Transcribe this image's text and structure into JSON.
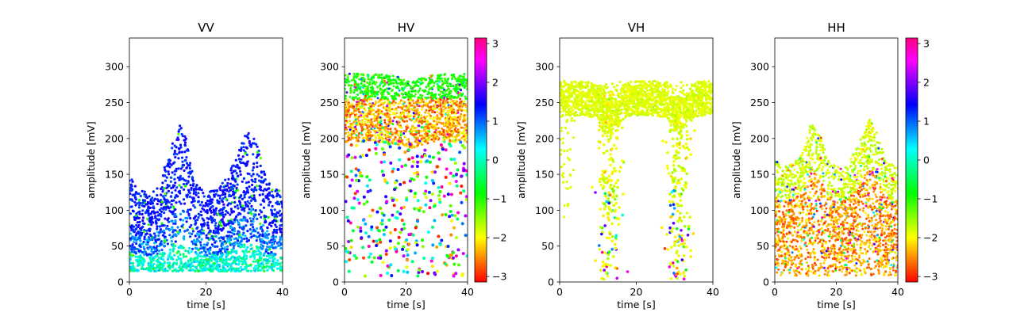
{
  "chart_data": [
    {
      "type": "scatter",
      "title": "VV",
      "xlabel": "time [s]",
      "ylabel": "amplitude [mV]",
      "xlim": [
        0,
        40
      ],
      "ylim": [
        0,
        340
      ],
      "xticks": [
        0,
        20,
        40
      ],
      "yticks": [
        0,
        50,
        100,
        150,
        200,
        250,
        300
      ],
      "colorbar": false,
      "description": "Dense point cloud; base envelope ~15-150 mV with bursts up to ~230 mV near t=13 s and t=31 s. Phase mostly +1 to +1.5 rad (blue), lower amplitudes ~0 to -1 rad (cyan/green).",
      "density": [
        [
          0,
          150
        ],
        [
          2,
          130
        ],
        [
          5,
          125
        ],
        [
          8,
          140
        ],
        [
          11,
          190
        ],
        [
          13,
          220
        ],
        [
          15,
          200
        ],
        [
          17,
          140
        ],
        [
          20,
          125
        ],
        [
          24,
          135
        ],
        [
          28,
          175
        ],
        [
          31,
          215
        ],
        [
          33,
          200
        ],
        [
          36,
          140
        ],
        [
          40,
          125
        ]
      ],
      "phase_scheme": "vv"
    },
    {
      "type": "scatter",
      "title": "HV",
      "xlabel": "time [s]",
      "ylabel": "amplitude [mV]",
      "xlim": [
        0,
        40
      ],
      "ylim": [
        0,
        340
      ],
      "xticks": [
        0,
        20,
        40
      ],
      "yticks": [
        0,
        50,
        100,
        150,
        200,
        250,
        300
      ],
      "colorbar": true,
      "colorbar_ticks": [
        -3,
        -2,
        -1,
        0,
        1,
        2,
        3
      ],
      "description": "Dense band 200-290 mV (green on top, orange/red below), sparse multicolor scatter down to ~10 mV.",
      "phase_scheme": "hv"
    },
    {
      "type": "scatter",
      "title": "VH",
      "xlabel": "time [s]",
      "ylabel": "amplitude [mV]",
      "xlim": [
        0,
        40
      ],
      "ylim": [
        0,
        340
      ],
      "xticks": [
        0,
        20,
        40
      ],
      "yticks": [
        0,
        50,
        100,
        150,
        200,
        250,
        300
      ],
      "colorbar": false,
      "description": "Band 230-280 mV, phase ~-1.8 rad (yellow-green); deep dips to ~0 mV near t=13 s and t=31 s.",
      "phase_scheme": "vh"
    },
    {
      "type": "scatter",
      "title": "HH",
      "xlabel": "time [s]",
      "ylabel": "amplitude [mV]",
      "xlim": [
        0,
        40
      ],
      "ylim": [
        0,
        340
      ],
      "xticks": [
        0,
        20,
        40
      ],
      "yticks": [
        0,
        50,
        100,
        150,
        200,
        250,
        300
      ],
      "colorbar": true,
      "colorbar_ticks": [
        -3,
        -2,
        -1,
        0,
        1,
        2,
        3
      ],
      "description": "Dense cloud 10-170 mV, phase mostly orange/yellow (-2.5 to -2 rad), bursts up to ~230 mV near t=13 s and t=31 s.",
      "density": [
        [
          0,
          170
        ],
        [
          3,
          160
        ],
        [
          6,
          165
        ],
        [
          9,
          180
        ],
        [
          12,
          225
        ],
        [
          14,
          215
        ],
        [
          17,
          175
        ],
        [
          20,
          160
        ],
        [
          24,
          165
        ],
        [
          28,
          200
        ],
        [
          31,
          230
        ],
        [
          33,
          210
        ],
        [
          36,
          170
        ],
        [
          40,
          160
        ]
      ],
      "phase_scheme": "hh"
    }
  ]
}
